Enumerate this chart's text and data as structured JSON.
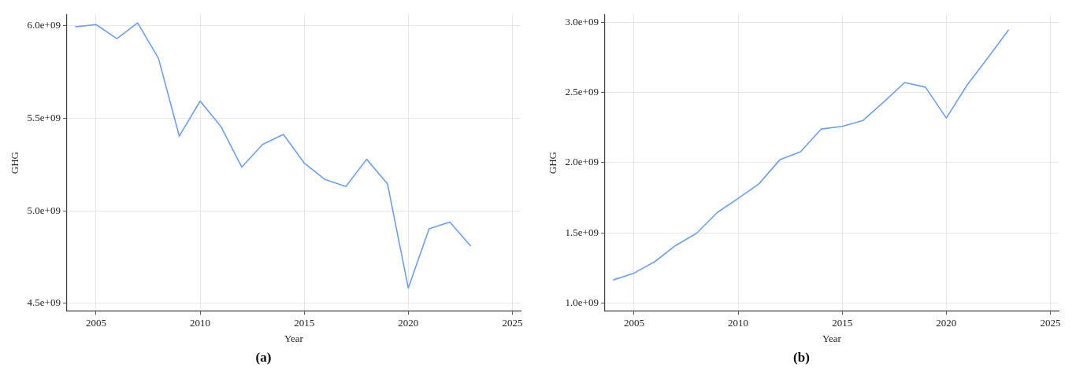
{
  "chart_data": [
    {
      "type": "line",
      "title": "(a)",
      "xlabel": "Year",
      "ylabel": "GHG",
      "x": [
        2004,
        2005,
        2006,
        2007,
        2008,
        2009,
        2010,
        2011,
        2012,
        2013,
        2014,
        2015,
        2016,
        2017,
        2018,
        2019,
        2020,
        2021,
        2022,
        2023
      ],
      "series": [
        {
          "color": "#6d9eeb",
          "values": [
            5995000000,
            6007000000,
            5931000000,
            6016000000,
            5824000000,
            5404000000,
            5594000000,
            5456000000,
            5237000000,
            5359000000,
            5413000000,
            5259000000,
            5170000000,
            5132000000,
            5279000000,
            5147000000,
            4583000000,
            4904000000,
            4940000000,
            4810000000
          ]
        }
      ],
      "xlim": [
        2003.6,
        2025.4
      ],
      "xticks": [
        2005,
        2010,
        2015,
        2020,
        2025
      ],
      "ylim": [
        4460000000,
        6060000000
      ],
      "yticks": [
        {
          "value": 4500000000,
          "label": "4.5e+09"
        },
        {
          "value": 5000000000,
          "label": "5.0e+09"
        },
        {
          "value": 5500000000,
          "label": "5.5e+09"
        },
        {
          "value": 6000000000,
          "label": "6.0e+09"
        }
      ],
      "grid": true,
      "legend": false,
      "marker": "none",
      "line_style": "solid"
    },
    {
      "type": "line",
      "title": "(b)",
      "xlabel": "Year",
      "ylabel": "GHG",
      "x": [
        2004,
        2005,
        2006,
        2007,
        2008,
        2009,
        2010,
        2011,
        2012,
        2013,
        2014,
        2015,
        2016,
        2017,
        2018,
        2019,
        2020,
        2021,
        2022,
        2023
      ],
      "series": [
        {
          "color": "#6d9eeb",
          "values": [
            1164000000,
            1213000000,
            1295000000,
            1410000000,
            1497000000,
            1645000000,
            1745000000,
            1849000000,
            2020000000,
            2078000000,
            2240000000,
            2259000000,
            2301000000,
            2433000000,
            2571000000,
            2538000000,
            2318000000,
            2553000000,
            2747000000,
            2948000000
          ]
        }
      ],
      "xlim": [
        2003.6,
        2025.4
      ],
      "xticks": [
        2005,
        2010,
        2015,
        2020,
        2025
      ],
      "ylim": [
        944000000,
        3054000000
      ],
      "yticks": [
        {
          "value": 1000000000,
          "label": "1.0e+09"
        },
        {
          "value": 1500000000,
          "label": "1.5e+09"
        },
        {
          "value": 2000000000,
          "label": "2.0e+09"
        },
        {
          "value": 2500000000,
          "label": "2.5e+09"
        },
        {
          "value": 3000000000,
          "label": "3.0e+09"
        }
      ],
      "grid": true,
      "legend": false,
      "marker": "none",
      "line_style": "solid"
    }
  ]
}
